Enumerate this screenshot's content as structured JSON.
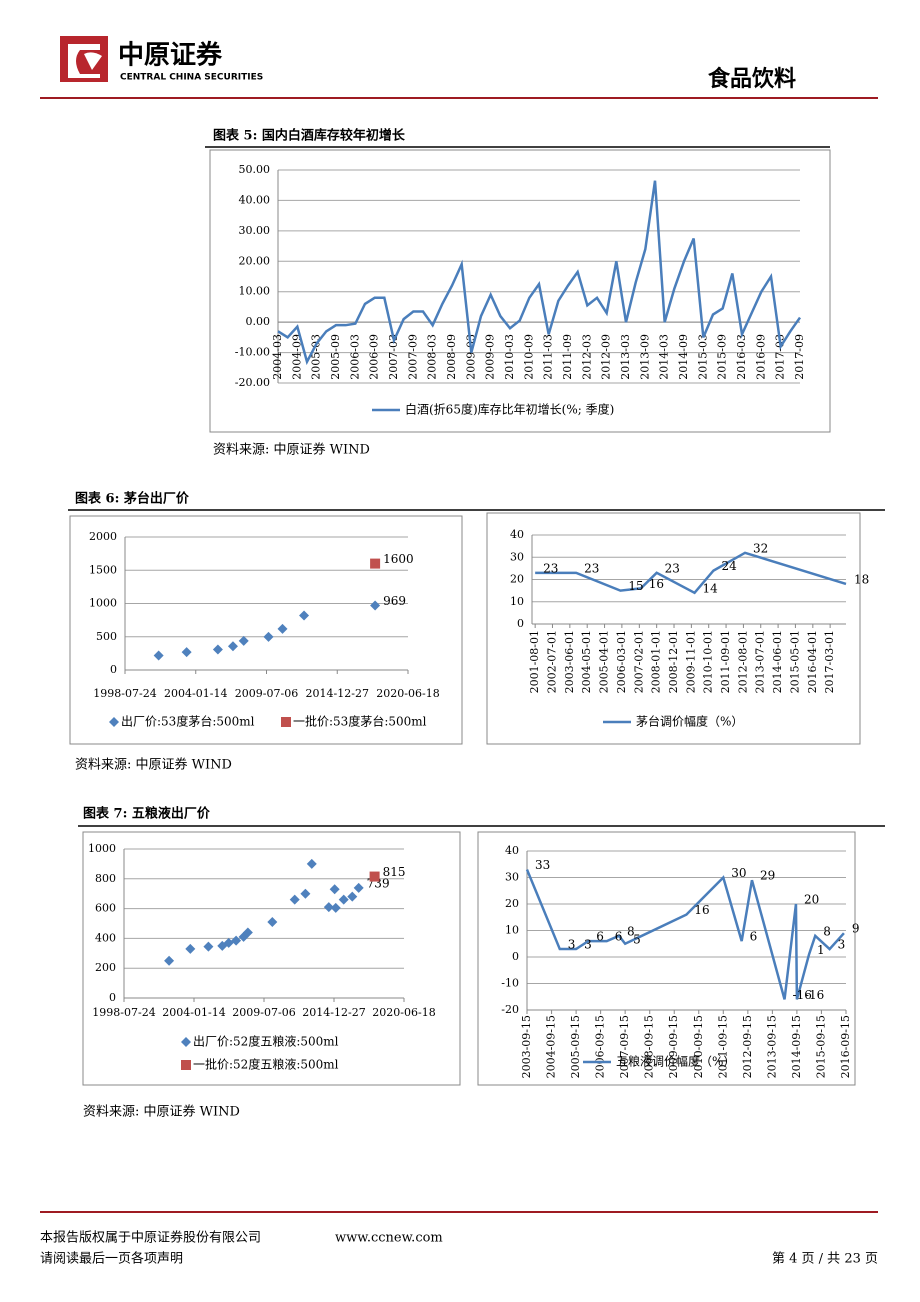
{
  "header": {
    "company": "中原证券",
    "company_en": "CENTRAL CHINA SECURITIES",
    "section": "食品饮料"
  },
  "figures": [
    {
      "title": "图表 5: 国内白酒库存较年初增长",
      "source": "资料来源: 中原证券 WIND"
    },
    {
      "title": "图表 6: 茅台出厂价",
      "source": "资料来源: 中原证券 WIND"
    },
    {
      "title": "图表 7: 五粮液出厂价",
      "source": "资料来源: 中原证券 WIND"
    }
  ],
  "chart_data": [
    {
      "type": "line",
      "grid": true,
      "legend": "bottom",
      "categories": [
        "2004-03",
        null,
        "2004-09",
        null,
        "2005-03",
        null,
        "2005-09",
        null,
        "2006-03",
        null,
        "2006-09",
        null,
        "2007-03",
        null,
        "2007-09",
        null,
        "2008-03",
        null,
        "2008-09",
        null,
        "2009-03",
        null,
        "2009-09",
        null,
        "2010-03",
        null,
        "2010-09",
        null,
        "2011-03",
        null,
        "2011-09",
        null,
        "2012-03",
        null,
        "2012-09",
        null,
        "2013-03",
        null,
        "2013-09",
        null,
        "2014-03",
        null,
        "2014-09",
        null,
        "2015-03",
        null,
        "2015-09",
        null,
        "2016-03",
        null,
        "2016-09",
        null,
        "2017-03",
        null,
        "2017-09"
      ],
      "series": [
        {
          "name": "白酒(折65度)库存比年初增长(%; 季度)",
          "color": "#4a7ebb",
          "values": [
            -3,
            -5,
            -1.5,
            -13,
            -7,
            -3,
            -1,
            -1,
            -0.5,
            6,
            8,
            8,
            -6,
            1,
            3.5,
            3.5,
            -1,
            6,
            12,
            19,
            -10,
            2,
            9,
            2,
            -2,
            0.5,
            8,
            12.5,
            -4,
            7,
            12,
            16.5,
            5.5,
            8,
            3,
            20,
            0,
            13,
            24,
            46.5,
            0,
            11,
            20,
            27.5,
            -5,
            2.5,
            4.5,
            16,
            -4,
            3,
            10,
            15,
            -8,
            -3,
            1.5
          ]
        }
      ],
      "ylim": [
        -20,
        50
      ],
      "yticks": [
        {
          "value": -20,
          "label": "-20.00"
        },
        {
          "value": -10,
          "label": "-10.00"
        },
        {
          "value": 0,
          "label": "0.00"
        },
        {
          "value": 10,
          "label": "10.00"
        },
        {
          "value": 20,
          "label": "20.00"
        },
        {
          "value": 30,
          "label": "30.00"
        },
        {
          "value": 40,
          "label": "40.00"
        },
        {
          "value": 50,
          "label": "50.00"
        }
      ]
    },
    {
      "type": "scatter",
      "grid": true,
      "legend": "bottom",
      "series": [
        {
          "name": "出厂价:53度茅台:500ml",
          "color": "#4f81bd",
          "marker": "diamond",
          "show_labels": "last",
          "x": [
            "2001-03-01",
            "2003-05-01",
            "2005-10-01",
            "2006-12-01",
            "2007-10-01",
            "2009-09-01",
            "2010-10-01",
            "2012-06-01",
            "2017-12-01"
          ],
          "values": [
            218,
            268,
            308,
            358,
            438,
            499,
            619,
            819,
            969
          ]
        },
        {
          "name": "一批价:53度茅台:500ml",
          "color": "#c0504d",
          "marker": "square",
          "show_labels": "last",
          "x": [
            "2017-12-01"
          ],
          "values": [
            1600
          ]
        }
      ],
      "xlim": [
        "1998-07-24",
        "2020-06-18"
      ],
      "xticks": [
        "1998-07-24",
        "2004-01-14",
        "2009-07-06",
        "2014-12-27",
        "2020-06-18"
      ],
      "ylim": [
        0,
        2000
      ],
      "yticks": [
        0,
        500,
        1000,
        1500,
        2000
      ]
    },
    {
      "type": "line",
      "grid": true,
      "legend": "bottom",
      "series": [
        {
          "name": "茅台调价幅度（%）",
          "color": "#4a7ebb",
          "show_labels": "all",
          "x": [
            "2001-08-01",
            "2003-10-01",
            "2006-02-01",
            "2007-03-01",
            "2008-01-01",
            "2010-01-01",
            "2011-01-01",
            "2012-09-01",
            "2018-01-01"
          ],
          "values": [
            23,
            23,
            15,
            16,
            23,
            14,
            24,
            32,
            18
          ]
        }
      ],
      "xlim": [
        "2001-06-01",
        "2018-01-01"
      ],
      "xticks": [
        "2001-08-01",
        "2002-07-01",
        "2003-06-01",
        "2004-05-01",
        "2005-04-01",
        "2006-03-01",
        "2007-02-01",
        "2008-01-01",
        "2008-12-01",
        "2009-11-01",
        "2010-10-01",
        "2011-09-01",
        "2012-08-01",
        "2013-07-01",
        "2014-06-01",
        "2015-05-01",
        "2016-04-01",
        "2017-03-01"
      ],
      "ylim": [
        0,
        40
      ],
      "yticks": [
        0,
        10,
        20,
        30,
        40
      ]
    },
    {
      "type": "scatter",
      "grid": true,
      "legend": "bottom",
      "series": [
        {
          "name": "出厂价:52度五粮液:500ml",
          "color": "#4f81bd",
          "marker": "diamond",
          "show_labels": "last",
          "x": [
            "2002-02-01",
            "2003-10-01",
            "2005-03-01",
            "2006-04-01",
            "2006-10-01",
            "2007-05-01",
            "2007-12-01",
            "2008-04-01",
            "2010-03-01",
            "2011-12-01",
            "2012-10-01",
            "2013-04-01",
            "2014-08-01",
            "2015-01-15",
            "2015-02-15",
            "2015-10-01",
            "2016-06-01",
            "2016-12-01"
          ],
          "values": [
            250,
            330,
            345,
            350,
            370,
            385,
            410,
            440,
            510,
            660,
            700,
            900,
            610,
            730,
            605,
            660,
            680,
            739
          ]
        },
        {
          "name": "一批价:52度五粮液:500ml",
          "color": "#c0504d",
          "marker": "square",
          "show_labels": "last",
          "x": [
            "2018-03-01"
          ],
          "values": [
            815
          ]
        }
      ],
      "xlim": [
        "1998-07-24",
        "2020-06-18"
      ],
      "xticks": [
        "1998-07-24",
        "2004-01-14",
        "2009-07-06",
        "2014-12-27",
        "2020-06-18"
      ],
      "ylim": [
        0,
        1000
      ],
      "yticks": [
        0,
        200,
        400,
        600,
        800,
        1000
      ]
    },
    {
      "type": "line",
      "grid": true,
      "legend": "bottom",
      "series": [
        {
          "name": "五粮液调价幅度（%）",
          "color": "#4a7ebb",
          "show_labels": "all",
          "x": [
            "2003-09-15",
            "2005-01-15",
            "2005-09-15",
            "2006-03-15",
            "2006-12-15",
            "2007-06-15",
            "2007-09-15",
            "2010-03-15",
            "2011-09-15",
            "2012-06-15",
            "2012-11-15",
            "2014-03-15",
            "2014-09-01",
            "2014-09-15",
            "2015-03-15",
            "2015-06-15",
            "2016-01-15",
            "2016-08-15"
          ],
          "values": [
            33,
            3,
            3,
            6,
            6,
            8,
            5,
            16,
            30,
            6,
            29,
            -16,
            20,
            -16,
            1,
            8,
            3,
            9
          ]
        }
      ],
      "xlim": [
        "2003-09-15",
        "2016-09-15"
      ],
      "xticks": [
        "2003-09-15",
        "2004-09-15",
        "2005-09-15",
        "2006-09-15",
        "2007-09-15",
        "2008-09-15",
        "2009-09-15",
        "2010-09-15",
        "2011-09-15",
        "2012-09-15",
        "2013-09-15",
        "2014-09-15",
        "2015-09-15",
        "2016-09-15"
      ],
      "ylim": [
        -20,
        40
      ],
      "yticks": [
        -20,
        -10,
        0,
        10,
        20,
        30,
        40
      ]
    }
  ],
  "footer": {
    "copyright": "本报告版权属于中原证券股份有限公司",
    "website": "www.ccnew.com",
    "notice": "请阅读最后一页各项声明",
    "page": "第 4 页 / 共 23 页"
  }
}
